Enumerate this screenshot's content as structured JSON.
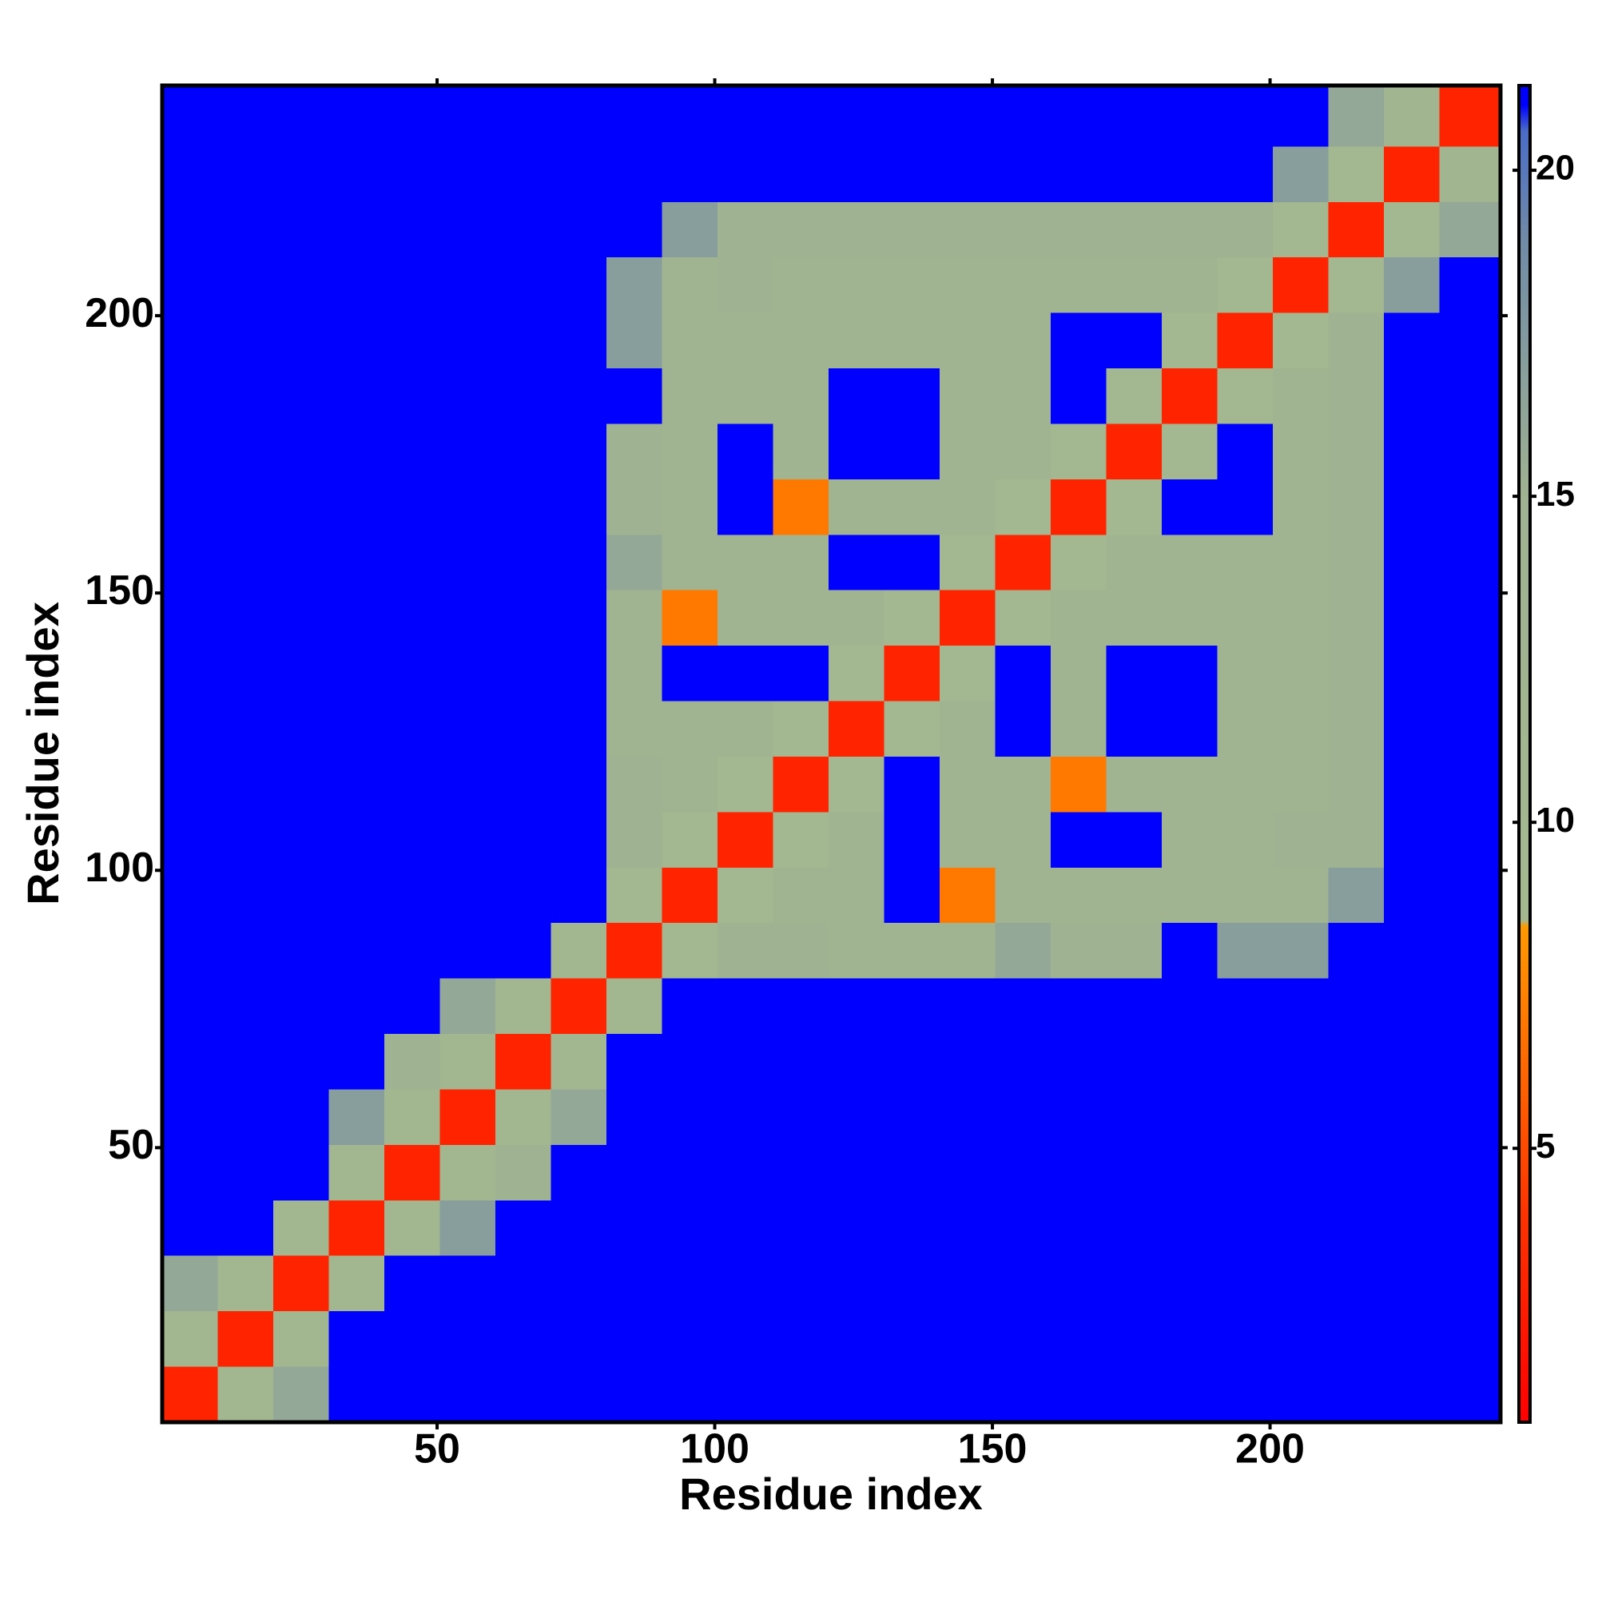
{
  "chart_data": {
    "type": "heatmap",
    "xlabel": "Residue index",
    "ylabel": "Residue index",
    "x_edges": [
      0.5,
      10.5,
      20.5,
      30.5,
      40.5,
      50.5,
      60.5,
      70.5,
      80.5,
      90.5,
      100.5,
      110.5,
      120.5,
      130.5,
      140.5,
      150.5,
      160.5,
      170.5,
      180.5,
      190.5,
      200.5,
      210.5,
      220.5,
      230.5,
      241.5
    ],
    "y_edges": [
      0.5,
      10.5,
      20.5,
      30.5,
      40.5,
      50.5,
      60.5,
      70.5,
      80.5,
      90.5,
      100.5,
      110.5,
      120.5,
      130.5,
      140.5,
      150.5,
      160.5,
      170.5,
      180.5,
      190.5,
      200.5,
      210.5,
      220.5,
      230.5,
      241.5
    ],
    "z": [
      [
        3,
        11,
        16,
        21,
        21,
        21,
        21,
        21,
        21,
        21,
        21,
        21,
        21,
        21,
        21,
        21,
        21,
        21,
        21,
        21,
        21,
        21,
        21,
        21
      ],
      [
        11,
        3,
        11,
        21,
        21,
        21,
        21,
        21,
        21,
        21,
        21,
        21,
        21,
        21,
        21,
        21,
        21,
        21,
        21,
        21,
        21,
        21,
        21,
        21
      ],
      [
        16,
        11,
        3,
        11,
        21,
        21,
        21,
        21,
        21,
        21,
        21,
        21,
        21,
        21,
        21,
        21,
        21,
        21,
        21,
        21,
        21,
        21,
        21,
        21
      ],
      [
        21,
        21,
        11,
        3,
        11,
        17,
        21,
        21,
        21,
        21,
        21,
        21,
        21,
        21,
        21,
        21,
        21,
        21,
        21,
        21,
        21,
        21,
        21,
        21
      ],
      [
        21,
        21,
        21,
        11,
        3,
        11,
        15,
        21,
        21,
        21,
        21,
        21,
        21,
        21,
        21,
        21,
        21,
        21,
        21,
        21,
        21,
        21,
        21,
        21
      ],
      [
        21,
        21,
        21,
        17,
        11,
        3,
        11,
        16,
        21,
        21,
        21,
        21,
        21,
        21,
        21,
        21,
        21,
        21,
        21,
        21,
        21,
        21,
        21,
        21
      ],
      [
        21,
        21,
        21,
        21,
        15,
        11,
        3,
        11,
        21,
        21,
        21,
        21,
        21,
        21,
        21,
        21,
        21,
        21,
        21,
        21,
        21,
        21,
        21,
        21
      ],
      [
        21,
        21,
        21,
        21,
        21,
        16,
        11,
        3,
        11,
        21,
        21,
        21,
        21,
        21,
        21,
        21,
        21,
        21,
        21,
        21,
        21,
        21,
        21,
        21
      ],
      [
        21,
        21,
        21,
        21,
        21,
        21,
        21,
        11,
        3,
        10,
        15,
        15,
        13,
        13,
        13,
        16,
        15,
        15,
        21,
        17,
        17,
        21,
        21,
        21
      ],
      [
        21,
        21,
        21,
        21,
        21,
        21,
        21,
        21,
        10,
        3,
        10,
        13,
        13,
        21,
        7,
        13,
        13,
        13,
        13,
        13,
        13,
        17,
        21,
        21
      ],
      [
        21,
        21,
        21,
        21,
        21,
        21,
        21,
        21,
        15,
        10,
        3,
        10,
        13,
        21,
        13,
        13,
        21,
        21,
        13,
        13,
        15,
        15,
        21,
        21
      ],
      [
        21,
        21,
        21,
        21,
        21,
        21,
        21,
        21,
        15,
        13,
        10,
        3,
        10,
        21,
        13,
        13,
        7,
        13,
        13,
        13,
        13,
        15,
        21,
        21
      ],
      [
        21,
        21,
        21,
        21,
        21,
        21,
        21,
        21,
        13,
        13,
        13,
        10,
        3,
        10,
        13,
        21,
        13,
        21,
        21,
        13,
        13,
        15,
        21,
        21
      ],
      [
        21,
        21,
        21,
        21,
        21,
        21,
        21,
        21,
        13,
        21,
        21,
        21,
        10,
        3,
        10,
        21,
        13,
        21,
        21,
        13,
        13,
        15,
        21,
        21
      ],
      [
        21,
        21,
        21,
        21,
        21,
        21,
        21,
        21,
        13,
        7,
        13,
        13,
        13,
        10,
        3,
        10,
        13,
        13,
        13,
        13,
        13,
        15,
        21,
        21
      ],
      [
        21,
        21,
        21,
        21,
        21,
        21,
        21,
        21,
        16,
        13,
        13,
        13,
        21,
        21,
        10,
        3,
        10,
        13,
        13,
        13,
        13,
        15,
        21,
        21
      ],
      [
        21,
        21,
        21,
        21,
        21,
        21,
        21,
        21,
        15,
        13,
        21,
        7,
        13,
        13,
        13,
        10,
        3,
        10,
        21,
        21,
        13,
        15,
        21,
        21
      ],
      [
        21,
        21,
        21,
        21,
        21,
        21,
        21,
        21,
        15,
        13,
        21,
        13,
        21,
        21,
        13,
        13,
        10,
        3,
        10,
        21,
        13,
        15,
        21,
        21
      ],
      [
        21,
        21,
        21,
        21,
        21,
        21,
        21,
        21,
        21,
        13,
        13,
        13,
        21,
        21,
        13,
        13,
        21,
        10,
        3,
        10,
        13,
        15,
        21,
        21
      ],
      [
        21,
        21,
        21,
        21,
        21,
        21,
        21,
        21,
        17,
        13,
        13,
        13,
        13,
        13,
        13,
        13,
        21,
        21,
        10,
        3,
        10,
        15,
        21,
        21
      ],
      [
        21,
        21,
        21,
        21,
        21,
        21,
        21,
        21,
        17,
        13,
        15,
        13,
        13,
        13,
        13,
        13,
        13,
        13,
        13,
        10,
        3,
        10,
        17,
        21
      ],
      [
        21,
        21,
        21,
        21,
        21,
        21,
        21,
        21,
        21,
        17,
        15,
        15,
        15,
        15,
        15,
        15,
        15,
        15,
        15,
        15,
        10,
        3,
        10,
        16
      ],
      [
        21,
        21,
        21,
        21,
        21,
        21,
        21,
        21,
        21,
        21,
        21,
        21,
        21,
        21,
        21,
        21,
        21,
        21,
        21,
        21,
        17,
        10,
        3,
        12
      ],
      [
        21,
        21,
        21,
        21,
        21,
        21,
        21,
        21,
        21,
        21,
        21,
        21,
        21,
        21,
        21,
        21,
        21,
        21,
        21,
        21,
        21,
        16,
        12,
        3
      ]
    ],
    "xlim": [
      0.5,
      241.5
    ],
    "ylim": [
      0.5,
      241.5
    ],
    "xticks": [
      50,
      100,
      150,
      200
    ],
    "yticks": [
      50,
      100,
      150,
      200
    ],
    "colorbar": {
      "lim": [
        0.8,
        21.3
      ],
      "ticks": [
        5,
        10,
        15,
        20
      ]
    },
    "colorscale": [
      [
        0.8,
        "#ff0000"
      ],
      [
        4,
        "#ff3300"
      ],
      [
        8.4,
        "#ff9900"
      ],
      [
        8.5,
        "#a4b890"
      ],
      [
        15,
        "#9fb291"
      ],
      [
        19,
        "#6f8aa8"
      ],
      [
        20.6,
        "#4a6cc8"
      ],
      [
        21,
        "#0000ff"
      ],
      [
        21.3,
        "#0000ff"
      ]
    ]
  }
}
